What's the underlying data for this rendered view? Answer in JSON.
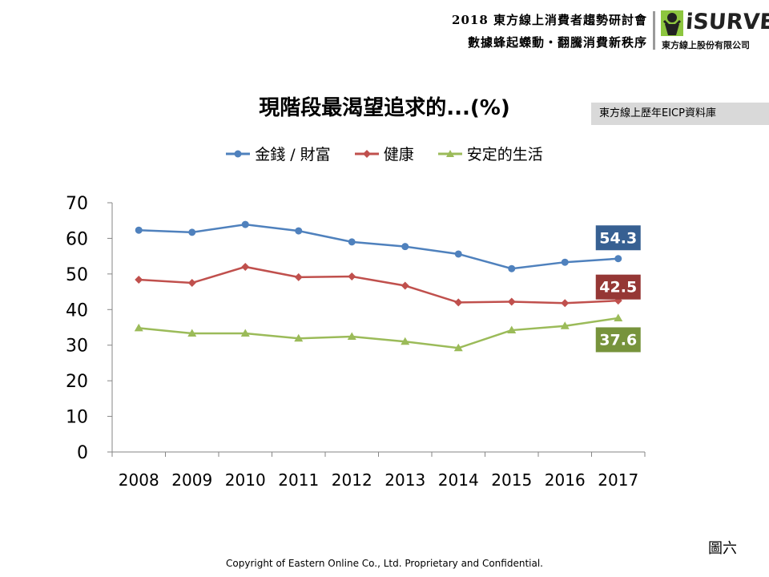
{
  "header": {
    "line1": "2018 東方線上消費者趨勢研討會",
    "line2": "數據蜂起蠑動・翻騰消費新秩序",
    "logo_text": "iSURVEY",
    "logo_company": "東方線上股份有限公司"
  },
  "source_label": "東方線上歷年EICP資料庫",
  "figure_label": "圖六",
  "copyright": "Copyright of Eastern Online Co., Ltd. Proprietary and Confidential.",
  "colors": {
    "series1": "#4f81bd",
    "series2": "#c0504d",
    "series3": "#9bbb59",
    "label1": "#376092",
    "label2": "#953735",
    "label3": "#77933c"
  },
  "chart_data": {
    "type": "line",
    "title": "現階段最渴望追求的...(%)",
    "xlabel": "",
    "ylabel": "",
    "ylim": [
      0,
      70
    ],
    "yticks": [
      0,
      10,
      20,
      30,
      40,
      50,
      60,
      70
    ],
    "grid": false,
    "legend": "top",
    "categories": [
      "2008",
      "2009",
      "2010",
      "2011",
      "2012",
      "2013",
      "2014",
      "2015",
      "2016",
      "2017"
    ],
    "series": [
      {
        "name": "金錢 / 財富",
        "marker": "circle",
        "values": [
          62.3,
          61.7,
          63.9,
          62.1,
          59.0,
          57.7,
          55.6,
          51.5,
          53.3,
          54.3
        ],
        "end_label": "54.3"
      },
      {
        "name": "健康",
        "marker": "diamond",
        "values": [
          48.4,
          47.5,
          52.0,
          49.1,
          49.3,
          46.7,
          42.0,
          42.2,
          41.8,
          42.5
        ],
        "end_label": "42.5"
      },
      {
        "name": "安定的生活",
        "marker": "triangle",
        "values": [
          34.8,
          33.3,
          33.3,
          31.9,
          32.4,
          31.0,
          29.2,
          34.2,
          35.4,
          37.6
        ],
        "end_label": "37.6"
      }
    ]
  }
}
